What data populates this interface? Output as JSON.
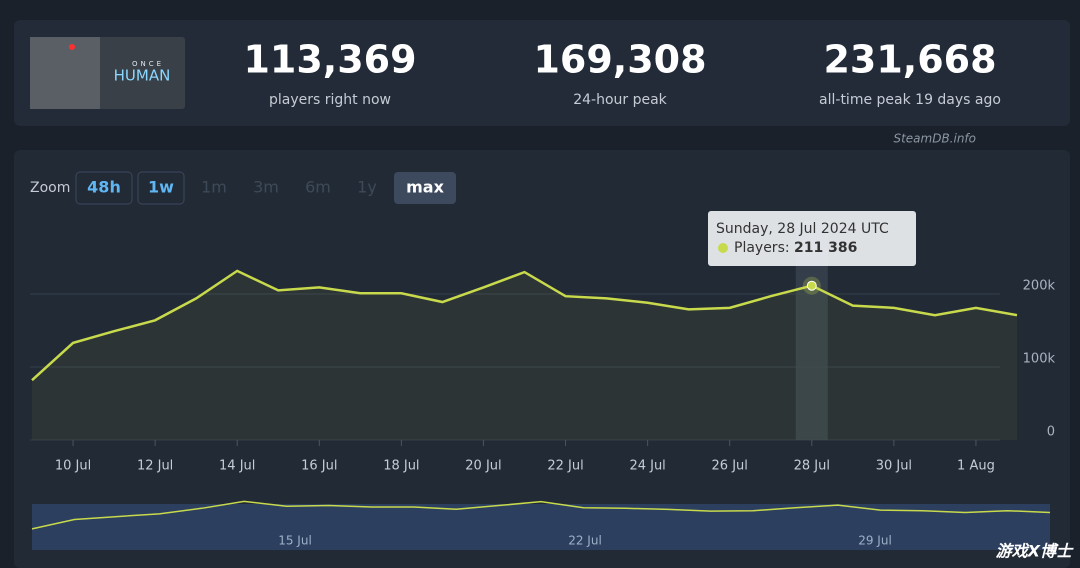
{
  "header": {
    "game": {
      "small": "ONCE",
      "name": "HUMAN"
    },
    "stats": [
      {
        "value": "113,369",
        "label": "players right now"
      },
      {
        "value": "169,308",
        "label": "24-hour peak"
      },
      {
        "value": "231,668",
        "label": "all-time peak 19 days ago"
      }
    ],
    "source": "SteamDB.info"
  },
  "zoom": {
    "label": "Zoom",
    "buttons": [
      "48h",
      "1w",
      "1m",
      "3m",
      "6m",
      "1y",
      "max"
    ]
  },
  "chart_data": {
    "type": "line",
    "categories": [
      null,
      "10 Jul",
      null,
      "12 Jul",
      null,
      "14 Jul",
      null,
      "16 Jul",
      null,
      "18 Jul",
      null,
      "20 Jul",
      null,
      "22 Jul",
      null,
      "24 Jul",
      null,
      "26 Jul",
      null,
      "28 Jul",
      null,
      "30 Jul",
      null,
      "1 Aug",
      null
    ],
    "series": [
      {
        "name": "Players",
        "color": "#c8da4c",
        "values": [
          82000,
          133000,
          149000,
          164000,
          194000,
          231668,
          205000,
          209000,
          201000,
          201000,
          189000,
          209000,
          230000,
          197000,
          194000,
          188000,
          179000,
          181000,
          197000,
          211386,
          184000,
          181000,
          171000,
          181000,
          171000
        ],
        "value_labels": [
          null,
          null,
          null,
          null,
          null,
          null,
          null,
          null,
          null,
          null,
          null,
          null,
          null,
          null,
          null,
          null,
          null,
          null,
          null,
          "211 386",
          null,
          null,
          null,
          null,
          null
        ]
      }
    ],
    "tooltip": {
      "title": "Sunday, 28 Jul 2024 UTC",
      "label": "Players:"
    },
    "ylim": [
      0,
      300000
    ],
    "yticks": [
      0,
      {
        "value": 100000,
        "label": "100k"
      },
      {
        "value": 200000,
        "label": "200k"
      }
    ],
    "grid": true,
    "navigator": {
      "labels": [
        "15 Jul",
        "22 Jul",
        "29 Jul"
      ]
    },
    "watermark": "游戏X博士"
  }
}
